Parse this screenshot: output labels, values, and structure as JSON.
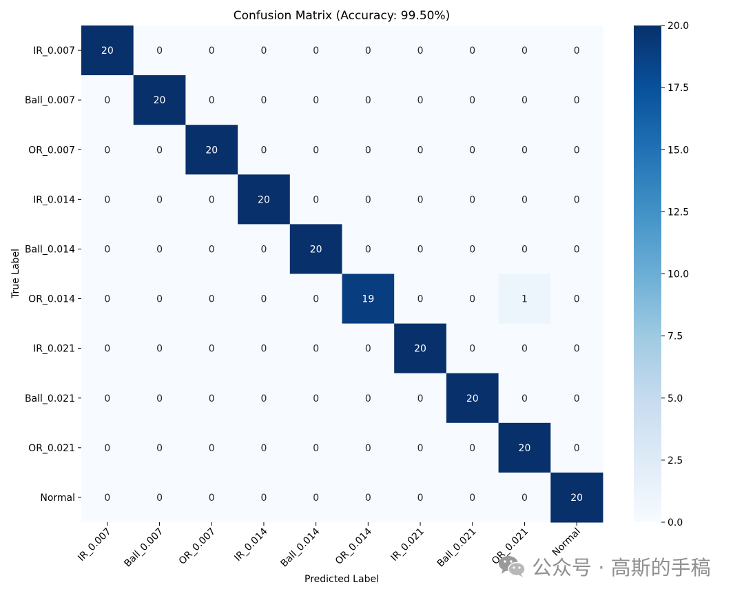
{
  "chart_data": {
    "type": "heatmap",
    "title": "Confusion Matrix (Accuracy: 99.50%)",
    "xlabel": "Predicted Label",
    "ylabel": "True Label",
    "row_labels": [
      "IR_0.007",
      "Ball_0.007",
      "OR_0.007",
      "IR_0.014",
      "Ball_0.014",
      "OR_0.014",
      "IR_0.021",
      "Ball_0.021",
      "OR_0.021",
      "Normal"
    ],
    "col_labels": [
      "IR_0.007",
      "Ball_0.007",
      "OR_0.007",
      "IR_0.014",
      "Ball_0.014",
      "OR_0.014",
      "IR_0.021",
      "Ball_0.021",
      "OR_0.021",
      "Normal"
    ],
    "values": [
      [
        20,
        0,
        0,
        0,
        0,
        0,
        0,
        0,
        0,
        0
      ],
      [
        0,
        20,
        0,
        0,
        0,
        0,
        0,
        0,
        0,
        0
      ],
      [
        0,
        0,
        20,
        0,
        0,
        0,
        0,
        0,
        0,
        0
      ],
      [
        0,
        0,
        0,
        20,
        0,
        0,
        0,
        0,
        0,
        0
      ],
      [
        0,
        0,
        0,
        0,
        20,
        0,
        0,
        0,
        0,
        0
      ],
      [
        0,
        0,
        0,
        0,
        0,
        19,
        0,
        0,
        1,
        0
      ],
      [
        0,
        0,
        0,
        0,
        0,
        0,
        20,
        0,
        0,
        0
      ],
      [
        0,
        0,
        0,
        0,
        0,
        0,
        0,
        20,
        0,
        0
      ],
      [
        0,
        0,
        0,
        0,
        0,
        0,
        0,
        0,
        20,
        0
      ],
      [
        0,
        0,
        0,
        0,
        0,
        0,
        0,
        0,
        0,
        20
      ]
    ],
    "colormap": "Blues",
    "vmin": 0,
    "vmax": 20,
    "colorbar_ticks": [
      "0.0",
      "2.5",
      "5.0",
      "7.5",
      "10.0",
      "12.5",
      "15.0",
      "17.5",
      "20.0"
    ],
    "colors": {
      "low": "#f7fbff",
      "high": "#08306b",
      "text_on_dark": "#ffffff",
      "text_on_light": "#262626"
    }
  },
  "watermark": {
    "text": "公众号 · 高斯的手稿",
    "icon": "wechat-icon"
  }
}
